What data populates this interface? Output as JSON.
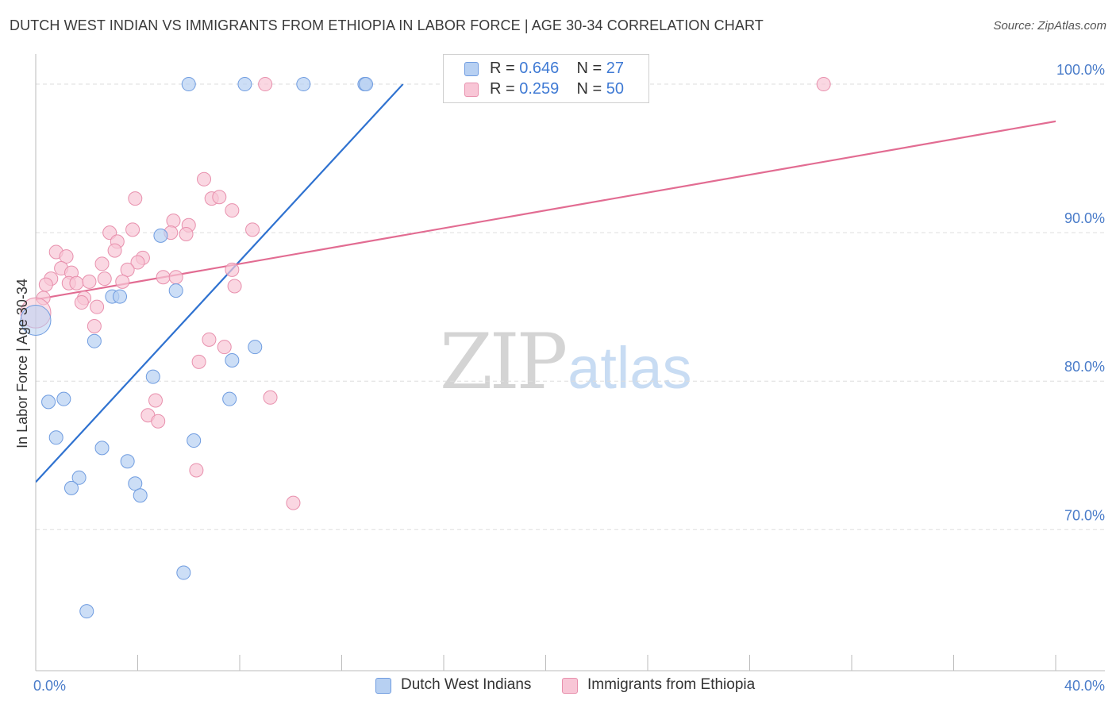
{
  "header": {
    "title": "DUTCH WEST INDIAN VS IMMIGRANTS FROM ETHIOPIA IN LABOR FORCE | AGE 30-34 CORRELATION CHART",
    "source": "Source: ZipAtlas.com"
  },
  "watermark": {
    "zip": "ZIP",
    "atlas": "atlas"
  },
  "legend": {
    "rows": [
      {
        "r_label": "R =",
        "r_value": "0.646",
        "n_label": "N =",
        "n_value": "27"
      },
      {
        "r_label": "R =",
        "r_value": "0.259",
        "n_label": "N =",
        "n_value": "50"
      }
    ]
  },
  "bottom_legend": {
    "series1": "Dutch West Indians",
    "series2": "Immigrants from Ethiopia"
  },
  "colors": {
    "blue_fill": "#b7d0f2",
    "blue_stroke": "#6f9ce0",
    "blue_line": "#2f72d0",
    "pink_fill": "#f8c6d6",
    "pink_stroke": "#e890ad",
    "pink_line": "#e26c92",
    "grid": "#dddddd",
    "tick_label": "#4a7cc9"
  },
  "chart_data": {
    "type": "scatter",
    "title": "DUTCH WEST INDIAN VS IMMIGRANTS FROM ETHIOPIA IN LABOR FORCE | AGE 30-34 CORRELATION CHART",
    "xlabel": "",
    "ylabel": "In Labor Force | Age 30-34",
    "xlim": [
      0,
      40
    ],
    "ylim": [
      60.5,
      101.5
    ],
    "x_tick_labels": [
      "0.0%",
      "40.0%"
    ],
    "y_ticks": [
      70,
      80,
      90,
      100
    ],
    "y_tick_labels": [
      "70.0%",
      "80.0%",
      "90.0%",
      "100.0%"
    ],
    "x_minor_ticks": [
      0,
      4,
      8,
      12,
      16,
      20,
      24,
      28,
      32,
      36,
      40
    ],
    "series": [
      {
        "name": "Dutch West Indians",
        "r": 0.646,
        "n": 27,
        "trend": {
          "x": [
            0,
            14.4
          ],
          "y": [
            73.2,
            100.0
          ]
        },
        "points": [
          {
            "x": 6.0,
            "y": 100.0
          },
          {
            "x": 8.2,
            "y": 100.0
          },
          {
            "x": 10.5,
            "y": 100.0
          },
          {
            "x": 12.9,
            "y": 100.0
          },
          {
            "x": 12.95,
            "y": 100.0
          },
          {
            "x": 0.0,
            "y": 84.1,
            "big": true
          },
          {
            "x": 3.0,
            "y": 85.7
          },
          {
            "x": 3.3,
            "y": 85.7
          },
          {
            "x": 5.5,
            "y": 86.1
          },
          {
            "x": 4.9,
            "y": 89.8
          },
          {
            "x": 2.3,
            "y": 82.7
          },
          {
            "x": 8.6,
            "y": 82.3
          },
          {
            "x": 7.7,
            "y": 81.4
          },
          {
            "x": 4.6,
            "y": 80.3
          },
          {
            "x": 1.1,
            "y": 78.8
          },
          {
            "x": 0.5,
            "y": 78.6
          },
          {
            "x": 7.6,
            "y": 78.8
          },
          {
            "x": 0.8,
            "y": 76.2
          },
          {
            "x": 2.6,
            "y": 75.5
          },
          {
            "x": 6.2,
            "y": 76.0
          },
          {
            "x": 3.6,
            "y": 74.6
          },
          {
            "x": 1.7,
            "y": 73.5
          },
          {
            "x": 1.4,
            "y": 72.8
          },
          {
            "x": 3.9,
            "y": 73.1
          },
          {
            "x": 4.1,
            "y": 72.3
          },
          {
            "x": 5.8,
            "y": 67.1
          },
          {
            "x": 2.0,
            "y": 64.5
          }
        ]
      },
      {
        "name": "Immigrants from Ethiopia",
        "r": 0.259,
        "n": 50,
        "trend": {
          "x": [
            0,
            40
          ],
          "y": [
            85.5,
            97.5
          ]
        },
        "points": [
          {
            "x": 9.0,
            "y": 100.0
          },
          {
            "x": 30.9,
            "y": 100.0
          },
          {
            "x": 6.6,
            "y": 93.6
          },
          {
            "x": 3.9,
            "y": 92.3
          },
          {
            "x": 6.9,
            "y": 92.3
          },
          {
            "x": 7.2,
            "y": 92.4
          },
          {
            "x": 7.7,
            "y": 91.5
          },
          {
            "x": 5.4,
            "y": 90.8
          },
          {
            "x": 6.0,
            "y": 90.5
          },
          {
            "x": 2.9,
            "y": 90.0
          },
          {
            "x": 3.8,
            "y": 90.2
          },
          {
            "x": 8.5,
            "y": 90.2
          },
          {
            "x": 5.3,
            "y": 90.0
          },
          {
            "x": 5.9,
            "y": 89.9
          },
          {
            "x": 3.2,
            "y": 89.4
          },
          {
            "x": 3.1,
            "y": 88.8
          },
          {
            "x": 0.8,
            "y": 88.7
          },
          {
            "x": 1.2,
            "y": 88.4
          },
          {
            "x": 4.2,
            "y": 88.3
          },
          {
            "x": 4.0,
            "y": 88.0
          },
          {
            "x": 2.6,
            "y": 87.9
          },
          {
            "x": 1.0,
            "y": 87.6
          },
          {
            "x": 3.6,
            "y": 87.5
          },
          {
            "x": 7.7,
            "y": 87.5
          },
          {
            "x": 1.4,
            "y": 87.3
          },
          {
            "x": 0.6,
            "y": 86.9
          },
          {
            "x": 5.0,
            "y": 87.0
          },
          {
            "x": 5.5,
            "y": 87.0
          },
          {
            "x": 2.7,
            "y": 86.9
          },
          {
            "x": 1.3,
            "y": 86.6
          },
          {
            "x": 1.6,
            "y": 86.6
          },
          {
            "x": 2.1,
            "y": 86.7
          },
          {
            "x": 3.4,
            "y": 86.7
          },
          {
            "x": 0.4,
            "y": 86.5
          },
          {
            "x": 7.8,
            "y": 86.4
          },
          {
            "x": 0.3,
            "y": 85.6
          },
          {
            "x": 1.9,
            "y": 85.6
          },
          {
            "x": 1.8,
            "y": 85.3
          },
          {
            "x": 2.4,
            "y": 85.0
          },
          {
            "x": 0.0,
            "y": 84.6,
            "big": true
          },
          {
            "x": 2.3,
            "y": 83.7
          },
          {
            "x": 6.8,
            "y": 82.8
          },
          {
            "x": 7.4,
            "y": 82.3
          },
          {
            "x": 6.4,
            "y": 81.3
          },
          {
            "x": 9.2,
            "y": 78.9
          },
          {
            "x": 4.7,
            "y": 78.7
          },
          {
            "x": 4.4,
            "y": 77.7
          },
          {
            "x": 4.8,
            "y": 77.3
          },
          {
            "x": 6.3,
            "y": 74.0
          },
          {
            "x": 10.1,
            "y": 71.8
          }
        ]
      }
    ]
  }
}
